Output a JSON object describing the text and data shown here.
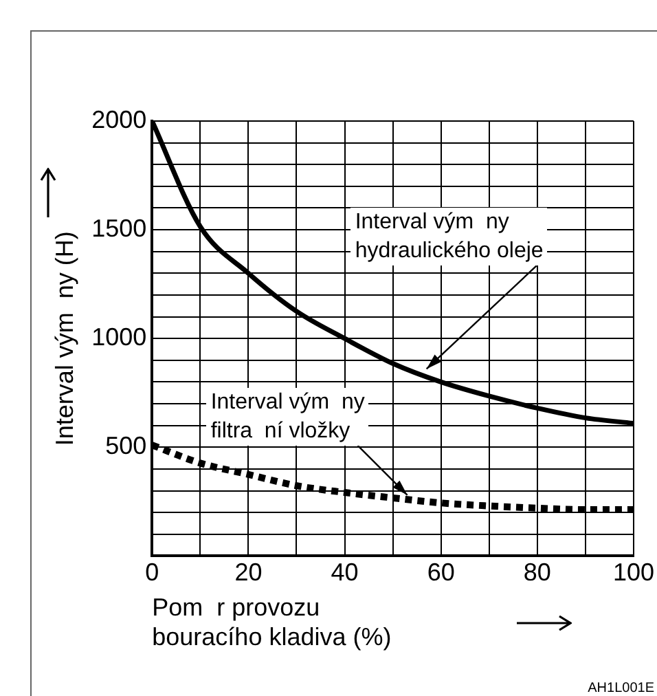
{
  "chart_data": {
    "type": "line",
    "xlabel": "Pom  r provozu\nbouracího kladiva (%)",
    "ylabel": "Interval vým  ny (H)",
    "x": [
      0,
      10,
      20,
      30,
      40,
      50,
      60,
      70,
      80,
      90,
      100
    ],
    "series": [
      {
        "color": "#000000",
        "line_style": "solid",
        "values": [
          2000,
          1515,
          1300,
          1125,
          1000,
          885,
          800,
          735,
          680,
          635,
          610
        ]
      },
      {
        "color": "#000000",
        "line_style": "dotted",
        "values": [
          510,
          427,
          375,
          323,
          292,
          267,
          244,
          230,
          220,
          213,
          213
        ]
      }
    ],
    "xlim": [
      0,
      100
    ],
    "xticks": [
      0,
      {
        "value": 10,
        "label": null
      },
      20,
      {
        "value": 30,
        "label": null
      },
      40,
      {
        "value": 50,
        "label": null
      },
      60,
      {
        "value": 70,
        "label": null
      },
      80,
      {
        "value": 90,
        "label": null
      },
      100
    ],
    "ylim": [
      0,
      2000
    ],
    "yticks": [
      {
        "value": 0,
        "label": null
      },
      {
        "value": 100,
        "label": null
      },
      {
        "value": 200,
        "label": null
      },
      {
        "value": 300,
        "label": null
      },
      {
        "value": 400,
        "label": null
      },
      500,
      {
        "value": 600,
        "label": null
      },
      {
        "value": 700,
        "label": null
      },
      {
        "value": 800,
        "label": null
      },
      {
        "value": 900,
        "label": null
      },
      1000,
      {
        "value": 1100,
        "label": null
      },
      {
        "value": 1200,
        "label": null
      },
      {
        "value": 1300,
        "label": null
      },
      {
        "value": 1400,
        "label": null
      },
      1500,
      {
        "value": 1600,
        "label": null
      },
      {
        "value": 1700,
        "label": null
      },
      {
        "value": 1800,
        "label": null
      },
      {
        "value": 1900,
        "label": null
      },
      2000
    ],
    "grid": true,
    "marker": "none",
    "annotations": [
      {
        "text": "Interval vým  ny\nhydraulického oleje",
        "x": 57,
        "y": 860
      },
      {
        "text": "Interval vým  ny\nfiltra  ní vložky",
        "x": 53,
        "y": 280
      },
      "AH1L001E"
    ]
  }
}
